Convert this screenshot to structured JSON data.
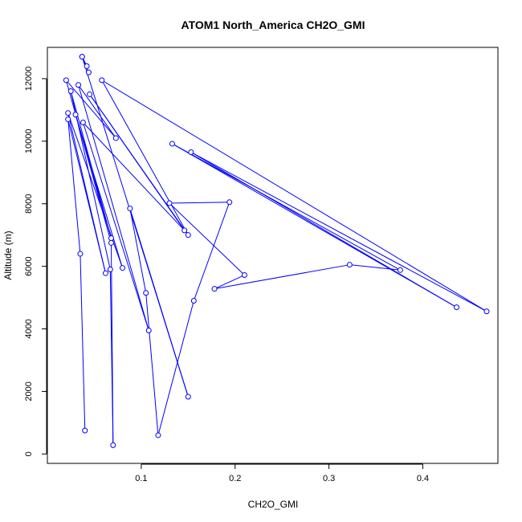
{
  "chart_data": {
    "type": "line",
    "title": "ATOM1 North_America CH2O_GMI",
    "xlabel": "CH2O_GMI",
    "ylabel": "Altitude (m)",
    "xlim": [
      0.0,
      0.48
    ],
    "ylim": [
      -300,
      13000
    ],
    "xticks": [
      0.1,
      0.2,
      0.3,
      0.4
    ],
    "xtick_labels": [
      "0.1",
      "0.2",
      "0.3",
      "0.4"
    ],
    "yticks": [
      0,
      2000,
      4000,
      6000,
      8000,
      10000,
      12000
    ],
    "ytick_labels": [
      "0",
      "2000",
      "4000",
      "6000",
      "8000",
      "10000",
      "12000"
    ],
    "color": "#0000ff",
    "marker": "open-circle",
    "grid": false,
    "series": [
      {
        "x": [
          0.04,
          0.035,
          0.022,
          0.062,
          0.022,
          0.08,
          0.03,
          0.068,
          0.025,
          0.067,
          0.07,
          0.068,
          0.02,
          0.073,
          0.033,
          0.108,
          0.038,
          0.146,
          0.045,
          0.15,
          0.058,
          0.468,
          0.153,
          0.436,
          0.133,
          0.376,
          0.322,
          0.178,
          0.21,
          0.13,
          0.194,
          0.156,
          0.118,
          0.105,
          0.088,
          0.15,
          0.037,
          0.042,
          0.037,
          0.044
        ],
        "y": [
          750,
          6400,
          10700,
          5780,
          10900,
          5950,
          10850,
          6900,
          11600,
          5900,
          280,
          6750,
          11950,
          10100,
          11800,
          3950,
          10600,
          7150,
          11500,
          7000,
          11950,
          4560,
          9650,
          4690,
          9920,
          5880,
          6050,
          5280,
          5720,
          8020,
          8050,
          4900,
          600,
          5150,
          7850,
          1830,
          12700,
          12400,
          12700,
          12200
        ]
      }
    ]
  }
}
